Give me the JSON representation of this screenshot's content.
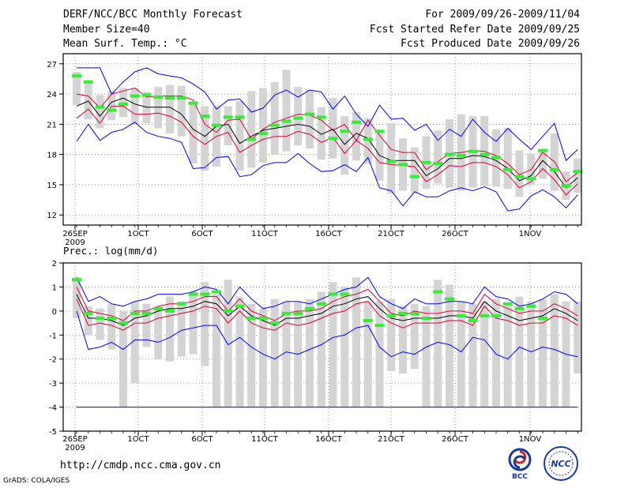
{
  "header": {
    "title": "DERF/NCC/BCC Monthly Forecast",
    "member_size": "Member Size=40",
    "variable": "Mean Surf. Temp.: °C",
    "period": "For 2009/09/26-2009/11/04",
    "started": "Fcst Started Refer Date 2009/09/25",
    "produced": "Fcst Produced Date 2009/09/26"
  },
  "footer": {
    "url": "http://cmdp.ncc.cma.gov.cn",
    "credit": "GrADS: COLA/IGES",
    "logo1": "BCC",
    "logo2": "NCC"
  },
  "colors": {
    "envelope": "#0000ff",
    "spread": "#dd0033",
    "mean": "#000000",
    "member": "#33ee33",
    "box": "#d4d4d4"
  },
  "chart_data": [
    {
      "type": "line",
      "title": "Mean Surf. Temp.: °C",
      "x_ticks": [
        "26SEP",
        "1OCT",
        "6OCT",
        "11OCT",
        "16OCT",
        "21OCT",
        "26OCT",
        "1NOV"
      ],
      "x_sub": "2009",
      "ylim": [
        11,
        28
      ],
      "y_ticks": [
        12,
        15,
        18,
        21,
        24,
        27
      ],
      "series": [
        {
          "name": "max",
          "values": [
            26.6,
            26.6,
            26.6,
            24.0,
            25.2,
            26.2,
            26.6,
            26.0,
            25.8,
            25.6,
            25.0,
            24.2,
            22.5,
            23.4,
            23.5,
            22.2,
            22.6,
            23.9,
            24.4,
            23.7,
            24.4,
            24.2,
            22.5,
            23.8,
            22.0,
            20.8,
            22.9,
            21.5,
            21.6,
            20.4,
            21.0,
            19.4,
            20.5,
            19.8,
            21.5,
            20.2,
            19.3,
            20.6,
            19.5,
            18.5,
            19.8,
            21.1,
            17.4,
            18.5
          ]
        },
        {
          "name": "plus_sd",
          "values": [
            24.0,
            23.8,
            22.6,
            24.0,
            24.3,
            24.6,
            23.7,
            23.8,
            23.8,
            23.8,
            23.4,
            21.0,
            20.2,
            21.4,
            21.5,
            19.5,
            20.5,
            21.2,
            21.6,
            22.0,
            21.9,
            21.4,
            20.4,
            21.0,
            19.4,
            21.4,
            19.9,
            18.5,
            18.2,
            18.2,
            16.5,
            17.3,
            18.1,
            18.2,
            18.4,
            18.3,
            17.9,
            17.1,
            16.0,
            16.5,
            18.2,
            17.3,
            15.3,
            16.2
          ]
        },
        {
          "name": "mean",
          "values": [
            22.8,
            23.3,
            21.8,
            23.2,
            23.6,
            23.0,
            22.7,
            22.7,
            22.7,
            22.0,
            20.5,
            19.8,
            20.8,
            21.0,
            19.1,
            19.8,
            20.4,
            20.6,
            20.8,
            21.0,
            20.8,
            20.0,
            20.5,
            19.0,
            20.1,
            19.6,
            17.9,
            17.4,
            17.4,
            17.4,
            15.9,
            16.6,
            17.6,
            17.6,
            17.9,
            17.8,
            17.4,
            16.6,
            15.4,
            15.9,
            17.4,
            16.3,
            14.7,
            15.7
          ]
        },
        {
          "name": "minus_sd",
          "values": [
            21.6,
            22.5,
            21.1,
            22.8,
            22.8,
            22.0,
            22.0,
            22.1,
            21.8,
            21.2,
            19.8,
            19.0,
            19.8,
            20.2,
            18.2,
            18.9,
            19.5,
            19.8,
            19.8,
            20.3,
            20.0,
            19.2,
            19.7,
            18.1,
            19.4,
            18.6,
            17.2,
            17.0,
            16.9,
            16.8,
            15.3,
            16.0,
            16.9,
            16.8,
            17.2,
            17.2,
            16.8,
            16.0,
            14.7,
            15.3,
            16.6,
            15.5,
            14.0,
            15.1
          ]
        },
        {
          "name": "min",
          "values": [
            19.3,
            21.0,
            19.4,
            20.2,
            20.5,
            21.2,
            20.2,
            19.8,
            19.6,
            19.2,
            16.6,
            16.7,
            17.7,
            17.8,
            15.8,
            16.0,
            16.9,
            17.2,
            17.2,
            18.1,
            17.1,
            16.3,
            16.4,
            17.0,
            16.3,
            17.7,
            14.7,
            14.4,
            12.9,
            14.3,
            13.8,
            13.8,
            14.4,
            14.7,
            14.4,
            14.8,
            14.3,
            12.4,
            12.6,
            13.9,
            14.5,
            13.8,
            12.7,
            14.0
          ]
        },
        {
          "name": "member",
          "values": [
            25.8,
            25.2,
            22.7,
            22.4,
            23.0,
            23.8,
            23.9,
            23.7,
            23.6,
            23.6,
            23.1,
            21.8,
            20.9,
            21.7,
            21.7,
            19.5,
            20.1,
            20.9,
            21.3,
            21.6,
            22.0,
            21.7,
            19.6,
            20.3,
            21.2,
            19.5,
            20.3,
            17.3,
            17.0,
            15.8,
            17.2,
            17.1,
            18.0,
            17.9,
            18.3,
            18.0,
            17.7,
            16.5,
            15.8,
            15.6,
            18.4,
            16.5,
            14.9,
            16.3
          ]
        },
        {
          "name": "box_top",
          "values": [
            26.2,
            25.2,
            23.9,
            24.3,
            24.6,
            24.6,
            24.2,
            24.7,
            24.9,
            24.8,
            23.0,
            22.8,
            22.8,
            22.8,
            23.3,
            24.3,
            24.6,
            25.2,
            26.4,
            24.7,
            24.4,
            22.7,
            23.6,
            21.8,
            22.2,
            21.6,
            20.3,
            21.1,
            19.6,
            18.7,
            19.8,
            20.4,
            21.5,
            22.0,
            21.8,
            21.8,
            20.5,
            20.6,
            18.4,
            18.1,
            18.5,
            20.1,
            16.3,
            17.6
          ]
        },
        {
          "name": "box_bottom",
          "values": [
            22.9,
            21.5,
            20.6,
            21.4,
            21.7,
            21.0,
            21.1,
            20.6,
            20.1,
            19.8,
            17.1,
            16.4,
            16.8,
            18.9,
            16.4,
            16.7,
            17.2,
            18.0,
            18.3,
            18.9,
            18.6,
            17.5,
            17.6,
            16.0,
            17.4,
            17.1,
            15.4,
            14.1,
            14.4,
            14.2,
            14.6,
            15.1,
            14.7,
            14.4,
            14.7,
            14.9,
            14.8,
            14.6,
            13.8,
            15.0,
            15.6,
            14.4,
            13.5,
            14.2
          ]
        }
      ]
    },
    {
      "type": "line",
      "title": "Prec.: log(mm/d)",
      "x_ticks": [
        "26SEP",
        "1OCT",
        "6OCT",
        "11OCT",
        "16OCT",
        "21OCT",
        "26OCT",
        "1NOV"
      ],
      "x_sub": "2009",
      "ylim": [
        -5,
        2
      ],
      "y_ticks": [
        -5,
        -4,
        -3,
        -2,
        -1,
        0,
        1,
        2
      ],
      "series": [
        {
          "name": "max",
          "values": [
            1.4,
            0.4,
            0.6,
            0.3,
            0.2,
            0.4,
            0.5,
            0.7,
            0.7,
            0.7,
            0.8,
            1.0,
            0.9,
            0.3,
            1.0,
            0.5,
            0.1,
            0.2,
            0.4,
            0.4,
            0.3,
            0.5,
            0.7,
            0.9,
            1.0,
            1.4,
            0.6,
            0.3,
            0.1,
            0.5,
            0.3,
            0.3,
            0.4,
            0.4,
            0.3,
            1.0,
            0.6,
            0.5,
            0.2,
            0.3,
            0.5,
            0.8,
            0.7,
            0.3
          ]
        },
        {
          "name": "plus_sd",
          "values": [
            1.0,
            0.0,
            -0.1,
            -0.2,
            -0.4,
            0.0,
            0.0,
            0.2,
            0.3,
            0.3,
            0.4,
            0.6,
            0.6,
            0.0,
            0.5,
            0.0,
            -0.2,
            -0.4,
            -0.1,
            0.0,
            0.0,
            0.1,
            0.4,
            0.6,
            0.7,
            0.9,
            0.4,
            -0.1,
            -0.2,
            0.0,
            -0.1,
            -0.1,
            0.0,
            0.0,
            -0.1,
            0.7,
            0.3,
            0.1,
            -0.1,
            0.0,
            0.0,
            0.3,
            0.1,
            -0.2
          ]
        },
        {
          "name": "mean",
          "values": [
            0.7,
            -0.3,
            -0.3,
            -0.4,
            -0.6,
            -0.3,
            -0.2,
            0.0,
            0.1,
            0.1,
            0.2,
            0.4,
            0.3,
            -0.2,
            0.2,
            -0.2,
            -0.4,
            -0.6,
            -0.3,
            -0.3,
            -0.2,
            -0.1,
            0.2,
            0.3,
            0.5,
            0.6,
            0.1,
            -0.3,
            -0.4,
            -0.3,
            -0.3,
            -0.3,
            -0.2,
            -0.2,
            -0.3,
            0.4,
            0.0,
            -0.2,
            -0.4,
            -0.3,
            -0.2,
            0.1,
            -0.1,
            -0.4
          ]
        },
        {
          "name": "minus_sd",
          "values": [
            0.5,
            -0.6,
            -0.5,
            -0.6,
            -0.8,
            -0.5,
            -0.5,
            -0.3,
            -0.2,
            -0.1,
            0.0,
            0.2,
            0.1,
            -0.5,
            0.0,
            -0.5,
            -0.7,
            -0.8,
            -0.5,
            -0.6,
            -0.5,
            -0.3,
            -0.1,
            0.0,
            0.3,
            0.4,
            -0.2,
            -0.5,
            -0.7,
            -0.5,
            -0.5,
            -0.5,
            -0.4,
            -0.4,
            -0.6,
            0.2,
            -0.3,
            -0.4,
            -0.6,
            -0.5,
            -0.5,
            -0.2,
            -0.3,
            -0.6
          ]
        },
        {
          "name": "min",
          "values": [
            0.0,
            -1.6,
            -1.5,
            -1.3,
            -1.6,
            -1.2,
            -1.2,
            -1.3,
            -1.1,
            -0.8,
            -0.7,
            -0.6,
            -0.6,
            -1.4,
            -1.1,
            -1.5,
            -1.8,
            -2.0,
            -1.7,
            -1.8,
            -1.6,
            -1.4,
            -1.1,
            -1.0,
            -0.7,
            -0.6,
            -1.5,
            -1.9,
            -1.7,
            -1.8,
            -1.5,
            -1.3,
            -1.4,
            -1.7,
            -1.1,
            -1.2,
            -1.8,
            -2.0,
            -1.5,
            -1.7,
            -1.5,
            -1.6,
            -1.8,
            -1.9
          ]
        },
        {
          "name": "floor",
          "values": [
            -4,
            -4,
            -4,
            -4,
            -4,
            -4,
            -4,
            -4,
            -4,
            -4,
            -4,
            -4,
            -4,
            -4,
            -4,
            -4,
            -4,
            -4,
            -4,
            -4,
            -4,
            -4,
            -4,
            -4,
            -4,
            -4,
            -4,
            -4,
            -4,
            -4,
            -4,
            -4,
            -4,
            -4,
            -4,
            -4,
            -4,
            -4,
            -4,
            -4,
            -4,
            -4,
            -4,
            -4
          ]
        },
        {
          "name": "member",
          "values": [
            1.3,
            -0.1,
            -0.3,
            -0.3,
            -0.5,
            -0.1,
            -0.1,
            0.1,
            0.0,
            0.3,
            0.7,
            0.7,
            0.8,
            0.0,
            0.2,
            -0.3,
            -0.3,
            -0.5,
            -0.1,
            -0.1,
            0.1,
            0.3,
            0.7,
            0.7,
            null,
            -0.4,
            -0.6,
            -0.2,
            -0.1,
            -0.1,
            -0.3,
            0.8,
            0.5,
            -0.2,
            -0.4,
            -0.2,
            -0.2,
            0.3,
            0.1,
            0.2,
            -0.3,
            null,
            null,
            null
          ]
        },
        {
          "name": "box_top",
          "values": [
            1.4,
            0.2,
            0.1,
            0.3,
            0.0,
            0.4,
            0.3,
            0.2,
            0.6,
            0.4,
            0.8,
            1.2,
            0.7,
            1.3,
            0.6,
            0.3,
            0.1,
            0.5,
            0.4,
            0.4,
            0.5,
            0.8,
            1.2,
            1.0,
            1.4,
            0.4,
            0.4,
            0.5,
            0.2,
            0.3,
            0.2,
            1.3,
            1.1,
            0.4,
            0.3,
            0.4,
            0.5,
            0.3,
            0.6,
            0.4,
            0.5,
            0.7,
            0.4,
            0.4
          ]
        },
        {
          "name": "box_bottom",
          "values": [
            -0.3,
            -1.0,
            -1.2,
            -1.6,
            -4.0,
            -3.0,
            -1.5,
            -2.0,
            -2.1,
            -1.9,
            -1.8,
            -2.3,
            -4.0,
            -4.0,
            -4.0,
            -4.0,
            -4.0,
            -4.0,
            -4.0,
            -4.0,
            -4.0,
            -4.0,
            -4.0,
            -4.0,
            -4.0,
            -4.0,
            -4.0,
            -2.5,
            -2.6,
            -2.4,
            -4.0,
            -4.0,
            -4.0,
            -4.0,
            -4.0,
            -4.0,
            -4.0,
            -4.0,
            -4.0,
            -4.0,
            -4.0,
            -4.0,
            -4.0,
            -2.6
          ]
        }
      ]
    }
  ]
}
